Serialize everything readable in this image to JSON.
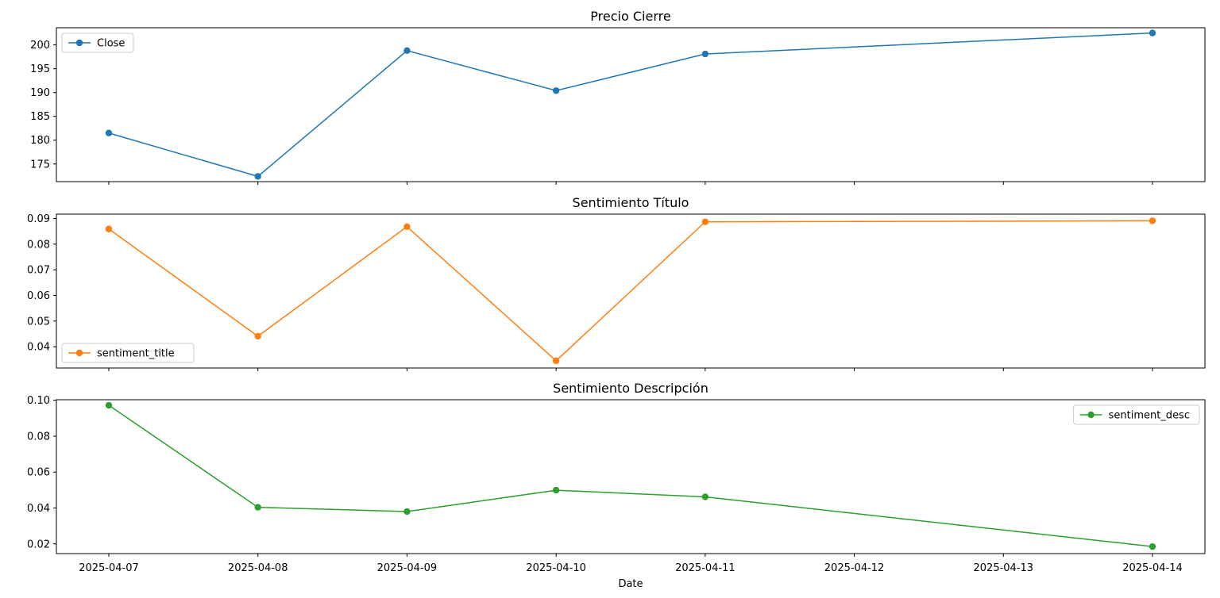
{
  "chart_data": {
    "type": "line",
    "x": [
      "2025-04-07",
      "2025-04-08",
      "2025-04-09",
      "2025-04-10",
      "2025-04-11",
      "2025-04-12",
      "2025-04-13",
      "2025-04-14"
    ],
    "xlabel": "Date",
    "x_ticks": [
      "2025-04-07",
      "2025-04-08",
      "2025-04-09",
      "2025-04-10",
      "2025-04-11",
      "2025-04-12",
      "2025-04-13",
      "2025-04-14"
    ],
    "grid": false,
    "panels": [
      {
        "title": "Precio Cierre",
        "legend_position": "upper-left",
        "ylim": [
          171.3,
          203.6
        ],
        "y_ticks": [
          "175",
          "180",
          "185",
          "190",
          "195",
          "200"
        ],
        "y_tick_values": [
          175,
          180,
          185,
          190,
          195,
          200
        ],
        "series": [
          {
            "name": "Close",
            "color": "#1f77b4",
            "points": [
              {
                "x": "2025-04-07",
                "y": 181.5
              },
              {
                "x": "2025-04-08",
                "y": 172.4
              },
              {
                "x": "2025-04-09",
                "y": 198.8
              },
              {
                "x": "2025-04-10",
                "y": 190.4
              },
              {
                "x": "2025-04-11",
                "y": 198.1
              },
              {
                "x": "2025-04-14",
                "y": 202.5
              }
            ]
          }
        ]
      },
      {
        "title": "Sentimiento Título",
        "legend_position": "lower-left",
        "ylim": [
          0.0317,
          0.0917
        ],
        "y_ticks": [
          "0.04",
          "0.05",
          "0.06",
          "0.07",
          "0.08",
          "0.09"
        ],
        "y_tick_values": [
          0.04,
          0.05,
          0.06,
          0.07,
          0.08,
          0.09
        ],
        "series": [
          {
            "name": "sentiment_title",
            "color": "#ff7f0e",
            "points": [
              {
                "x": "2025-04-07",
                "y": 0.0859
              },
              {
                "x": "2025-04-08",
                "y": 0.0441
              },
              {
                "x": "2025-04-09",
                "y": 0.0868
              },
              {
                "x": "2025-04-10",
                "y": 0.0345
              },
              {
                "x": "2025-04-11",
                "y": 0.0887
              },
              {
                "x": "2025-04-14",
                "y": 0.0891
              }
            ]
          }
        ]
      },
      {
        "title": "Sentimiento Descripción",
        "legend_position": "upper-right",
        "ylim": [
          0.0146,
          0.1003
        ],
        "y_ticks": [
          "0.02",
          "0.04",
          "0.06",
          "0.08",
          "0.10"
        ],
        "y_tick_values": [
          0.02,
          0.04,
          0.06,
          0.08,
          0.1
        ],
        "series": [
          {
            "name": "sentiment_desc",
            "color": "#2ca02c",
            "points": [
              {
                "x": "2025-04-07",
                "y": 0.0972
              },
              {
                "x": "2025-04-08",
                "y": 0.0404
              },
              {
                "x": "2025-04-09",
                "y": 0.038
              },
              {
                "x": "2025-04-10",
                "y": 0.0499
              },
              {
                "x": "2025-04-11",
                "y": 0.0462
              },
              {
                "x": "2025-04-14",
                "y": 0.0185
              }
            ]
          }
        ]
      }
    ]
  }
}
